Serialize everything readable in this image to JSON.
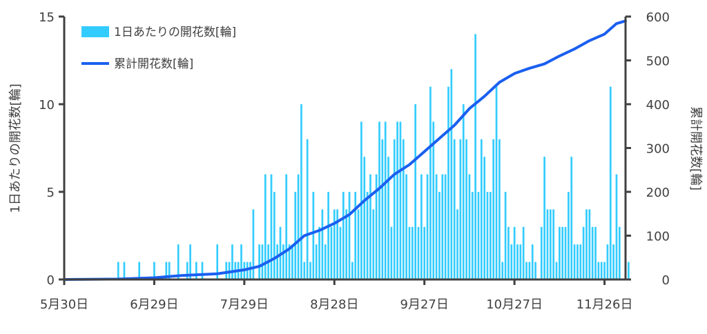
{
  "chart_data": {
    "type": "bar+line",
    "title": "",
    "x_axis": {
      "type": "date",
      "range": [
        "2023-05-30",
        "2023-12-03"
      ],
      "tick_dates": [
        "2023-05-30",
        "2023-06-29",
        "2023-07-29",
        "2023-08-28",
        "2023-09-27",
        "2023-10-27",
        "2023-11-26"
      ],
      "tick_labels": [
        "5月30日",
        "6月29日",
        "7月29日",
        "8月28日",
        "9月27日",
        "10月27日",
        "11月26日"
      ]
    },
    "y_left": {
      "label": "1日あたりの開花数[輪]",
      "range": [
        0,
        15
      ],
      "ticks": [
        0,
        5,
        10,
        15
      ]
    },
    "y_right": {
      "label": "累計開花数[輪]",
      "range": [
        0,
        600
      ],
      "ticks": [
        0,
        100,
        200,
        300,
        400,
        500,
        600
      ]
    },
    "legend": {
      "position": "top-left",
      "entries": [
        "1日あたりの開花数[輪]",
        "累計開花数[輪]"
      ]
    },
    "colors": {
      "bar": "#33CCFF",
      "line": "#1A5FF0",
      "axis": "#404040"
    },
    "series": [
      {
        "name": "1日あたりの開花数[輪]",
        "type": "bar",
        "axis": "left",
        "points": [
          [
            "2023-06-17",
            1
          ],
          [
            "2023-06-19",
            1
          ],
          [
            "2023-06-24",
            1
          ],
          [
            "2023-06-29",
            1
          ],
          [
            "2023-07-03",
            1
          ],
          [
            "2023-07-04",
            1
          ],
          [
            "2023-07-07",
            2
          ],
          [
            "2023-07-10",
            1
          ],
          [
            "2023-07-11",
            2
          ],
          [
            "2023-07-13",
            1
          ],
          [
            "2023-07-15",
            1
          ],
          [
            "2023-07-20",
            2
          ],
          [
            "2023-07-23",
            1
          ],
          [
            "2023-07-24",
            1
          ],
          [
            "2023-07-25",
            2
          ],
          [
            "2023-07-26",
            1
          ],
          [
            "2023-07-27",
            1
          ],
          [
            "2023-07-28",
            2
          ],
          [
            "2023-07-29",
            1
          ],
          [
            "2023-07-30",
            1
          ],
          [
            "2023-07-31",
            1
          ],
          [
            "2023-08-01",
            4
          ],
          [
            "2023-08-03",
            2
          ],
          [
            "2023-08-04",
            2
          ],
          [
            "2023-08-05",
            6
          ],
          [
            "2023-08-06",
            2
          ],
          [
            "2023-08-07",
            6
          ],
          [
            "2023-08-08",
            5
          ],
          [
            "2023-08-09",
            2
          ],
          [
            "2023-08-10",
            3
          ],
          [
            "2023-08-11",
            2
          ],
          [
            "2023-08-12",
            6
          ],
          [
            "2023-08-13",
            2
          ],
          [
            "2023-08-14",
            2
          ],
          [
            "2023-08-15",
            5
          ],
          [
            "2023-08-16",
            6
          ],
          [
            "2023-08-17",
            10
          ],
          [
            "2023-08-18",
            1
          ],
          [
            "2023-08-19",
            8
          ],
          [
            "2023-08-20",
            1
          ],
          [
            "2023-08-21",
            5
          ],
          [
            "2023-08-22",
            2
          ],
          [
            "2023-08-23",
            3
          ],
          [
            "2023-08-24",
            4
          ],
          [
            "2023-08-25",
            2
          ],
          [
            "2023-08-26",
            5
          ],
          [
            "2023-08-27",
            3
          ],
          [
            "2023-08-28",
            4
          ],
          [
            "2023-08-29",
            4
          ],
          [
            "2023-08-30",
            3
          ],
          [
            "2023-08-31",
            5
          ],
          [
            "2023-09-01",
            4
          ],
          [
            "2023-09-02",
            5
          ],
          [
            "2023-09-03",
            1
          ],
          [
            "2023-09-04",
            5
          ],
          [
            "2023-09-05",
            4
          ],
          [
            "2023-09-06",
            9
          ],
          [
            "2023-09-07",
            7
          ],
          [
            "2023-09-08",
            5
          ],
          [
            "2023-09-09",
            6
          ],
          [
            "2023-09-10",
            4
          ],
          [
            "2023-09-11",
            6
          ],
          [
            "2023-09-12",
            9
          ],
          [
            "2023-09-13",
            8
          ],
          [
            "2023-09-14",
            9
          ],
          [
            "2023-09-15",
            7
          ],
          [
            "2023-09-16",
            3
          ],
          [
            "2023-09-17",
            8
          ],
          [
            "2023-09-18",
            9
          ],
          [
            "2023-09-19",
            9
          ],
          [
            "2023-09-20",
            8
          ],
          [
            "2023-09-21",
            6
          ],
          [
            "2023-09-22",
            3
          ],
          [
            "2023-09-23",
            3
          ],
          [
            "2023-09-24",
            10
          ],
          [
            "2023-09-25",
            3
          ],
          [
            "2023-09-26",
            6
          ],
          [
            "2023-09-27",
            3
          ],
          [
            "2023-09-28",
            6
          ],
          [
            "2023-09-29",
            11
          ],
          [
            "2023-09-30",
            9
          ],
          [
            "2023-10-01",
            6
          ],
          [
            "2023-10-02",
            5
          ],
          [
            "2023-10-03",
            6
          ],
          [
            "2023-10-04",
            6
          ],
          [
            "2023-10-05",
            11
          ],
          [
            "2023-10-06",
            12
          ],
          [
            "2023-10-07",
            8
          ],
          [
            "2023-10-08",
            4
          ],
          [
            "2023-10-09",
            8
          ],
          [
            "2023-10-10",
            10
          ],
          [
            "2023-10-11",
            8
          ],
          [
            "2023-10-12",
            6
          ],
          [
            "2023-10-13",
            5
          ],
          [
            "2023-10-14",
            14
          ],
          [
            "2023-10-15",
            5
          ],
          [
            "2023-10-16",
            8
          ],
          [
            "2023-10-17",
            7
          ],
          [
            "2023-10-18",
            5
          ],
          [
            "2023-10-19",
            5
          ],
          [
            "2023-10-20",
            8
          ],
          [
            "2023-10-21",
            11
          ],
          [
            "2023-10-22",
            8
          ],
          [
            "2023-10-23",
            1
          ],
          [
            "2023-10-24",
            5
          ],
          [
            "2023-10-25",
            3
          ],
          [
            "2023-10-26",
            2
          ],
          [
            "2023-10-27",
            3
          ],
          [
            "2023-10-28",
            2
          ],
          [
            "2023-10-29",
            2
          ],
          [
            "2023-10-30",
            3
          ],
          [
            "2023-10-31",
            1
          ],
          [
            "2023-11-01",
            1
          ],
          [
            "2023-11-02",
            2
          ],
          [
            "2023-11-03",
            1
          ],
          [
            "2023-11-05",
            3
          ],
          [
            "2023-11-06",
            7
          ],
          [
            "2023-11-07",
            4
          ],
          [
            "2023-11-08",
            4
          ],
          [
            "2023-11-09",
            4
          ],
          [
            "2023-11-10",
            1
          ],
          [
            "2023-11-11",
            3
          ],
          [
            "2023-11-12",
            3
          ],
          [
            "2023-11-13",
            3
          ],
          [
            "2023-11-14",
            5
          ],
          [
            "2023-11-15",
            7
          ],
          [
            "2023-11-16",
            2
          ],
          [
            "2023-11-17",
            2
          ],
          [
            "2023-11-18",
            2
          ],
          [
            "2023-11-19",
            3
          ],
          [
            "2023-11-20",
            4
          ],
          [
            "2023-11-21",
            4
          ],
          [
            "2023-11-22",
            3
          ],
          [
            "2023-11-23",
            3
          ],
          [
            "2023-11-24",
            1
          ],
          [
            "2023-11-25",
            1
          ],
          [
            "2023-11-26",
            1
          ],
          [
            "2023-11-27",
            2
          ],
          [
            "2023-11-28",
            11
          ],
          [
            "2023-11-29",
            2
          ],
          [
            "2023-11-30",
            6
          ],
          [
            "2023-12-01",
            3
          ],
          [
            "2023-12-03",
            1
          ],
          [
            "2023-12-04",
            1
          ]
        ]
      },
      {
        "name": "累計開花数[輪]",
        "type": "line",
        "axis": "right",
        "points": [
          [
            "2023-05-30",
            0
          ],
          [
            "2023-06-17",
            1
          ],
          [
            "2023-06-29",
            4
          ],
          [
            "2023-07-08",
            9
          ],
          [
            "2023-07-20",
            13
          ],
          [
            "2023-07-29",
            22
          ],
          [
            "2023-08-03",
            30
          ],
          [
            "2023-08-08",
            48
          ],
          [
            "2023-08-13",
            70
          ],
          [
            "2023-08-18",
            100
          ],
          [
            "2023-08-23",
            112
          ],
          [
            "2023-08-28",
            128
          ],
          [
            "2023-09-02",
            148
          ],
          [
            "2023-09-07",
            180
          ],
          [
            "2023-09-12",
            208
          ],
          [
            "2023-09-17",
            240
          ],
          [
            "2023-09-22",
            262
          ],
          [
            "2023-09-27",
            292
          ],
          [
            "2023-10-02",
            322
          ],
          [
            "2023-10-07",
            352
          ],
          [
            "2023-10-12",
            390
          ],
          [
            "2023-10-17",
            418
          ],
          [
            "2023-10-22",
            450
          ],
          [
            "2023-10-27",
            470
          ],
          [
            "2023-11-01",
            482
          ],
          [
            "2023-11-06",
            492
          ],
          [
            "2023-11-11",
            510
          ],
          [
            "2023-11-16",
            526
          ],
          [
            "2023-11-21",
            545
          ],
          [
            "2023-11-26",
            560
          ],
          [
            "2023-11-28",
            572
          ],
          [
            "2023-11-30",
            584
          ],
          [
            "2023-12-03",
            590
          ]
        ]
      }
    ]
  }
}
